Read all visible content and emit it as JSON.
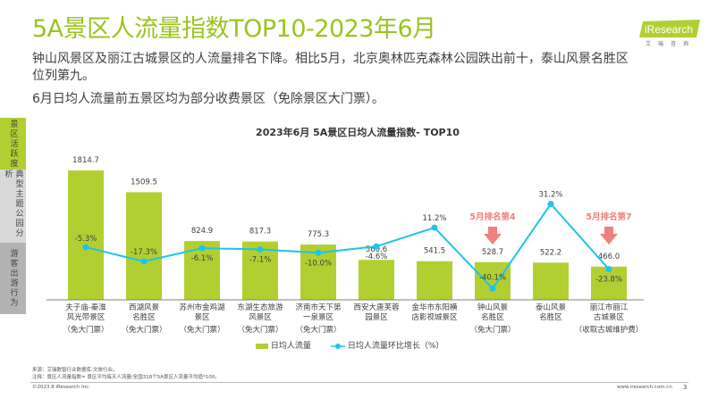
{
  "header": {
    "title": "5A景区人流量指数TOP10-2023年6月",
    "subtitle_lines": [
      "钟山风景区及丽江古城景区的人流量排名下降。相比5月，北京奥林匹克森林公园跌出前十，泰山风景名胜区",
      "位列第九。",
      "6月日均人流量前五景区均为部分收费景区（免除景区大门票）。"
    ],
    "logo_text": "iResearch",
    "logo_cn": "艾瑞咨询"
  },
  "sidebar": {
    "items": [
      {
        "label": "景区活跃度",
        "color": "#b2cf32",
        "active": true
      },
      {
        "label": "典型主题公园分析",
        "color": "#d9d9d9"
      },
      {
        "label": "游客出游行为",
        "color": "#b3b3b3"
      }
    ]
  },
  "chart_data": {
    "type": "bar",
    "title": "2023年6月 5A景区日均人流量指数- TOP10",
    "categories": [
      "夫子庙-秦淮\n风光带景区",
      "西湖风景\n名胜区",
      "苏州市金鸡湖\n景区",
      "东湖生态旅游\n风景区",
      "济南市天下第\n一泉景区",
      "西安大唐芙蓉\n园景区",
      "金华市东阳横\n店影视城景区",
      "钟山风景\n名胜区",
      "泰山风景\n名胜区",
      "丽江市丽江\n古城景区"
    ],
    "category_notes": [
      "（免大门票）",
      "（免大门票）",
      "（免大门票）",
      "（免大门票）",
      "（免大门票）",
      "",
      "",
      "（免大门票）",
      "",
      "（收取古城维护费）"
    ],
    "series": [
      {
        "name": "日均人流量",
        "type": "bar",
        "color": "#b2cf32",
        "values": [
          1814.7,
          1509.5,
          824.9,
          817.3,
          775.3,
          560.6,
          541.5,
          528.7,
          522.2,
          466.0
        ],
        "labels": [
          "1814.7",
          "1509.5",
          "824.9",
          "817.3",
          "775.3",
          "560.6",
          "541.5",
          "528.7",
          "522.2",
          "466.0"
        ]
      },
      {
        "name": "日均人流量环比增长（%）",
        "type": "line",
        "color": "#1fc3ea",
        "values": [
          -5.3,
          -17.3,
          -6.1,
          -7.1,
          -10.0,
          -4.6,
          11.2,
          -40.1,
          31.2,
          -23.8
        ],
        "labels": [
          "-5.3%",
          "-17.3%",
          "-6.1%",
          "-7.1%",
          "-10.0%",
          "-4.6%",
          "11.2%",
          "-40.1%",
          "31.2%",
          "-23.8%"
        ]
      }
    ],
    "annotations": [
      {
        "category_index": 7,
        "text": "5月排名第4",
        "color": "#f08080",
        "arrow": "down"
      },
      {
        "category_index": 9,
        "text": "5月排名第7",
        "color": "#f08080",
        "arrow": "down"
      }
    ],
    "legend_position": "bottom",
    "grid": false
  },
  "footer": {
    "source": "来源：艾瑞数智行业数据库-文旅行业。",
    "note": "注释：景区人流量指数= 景区平均每天人流量/全国318个5A景区人流量平均值*100。",
    "copyright": "©2023.8 iResearch Inc.",
    "url": "www.iresearch.com.cn",
    "page": "3"
  }
}
